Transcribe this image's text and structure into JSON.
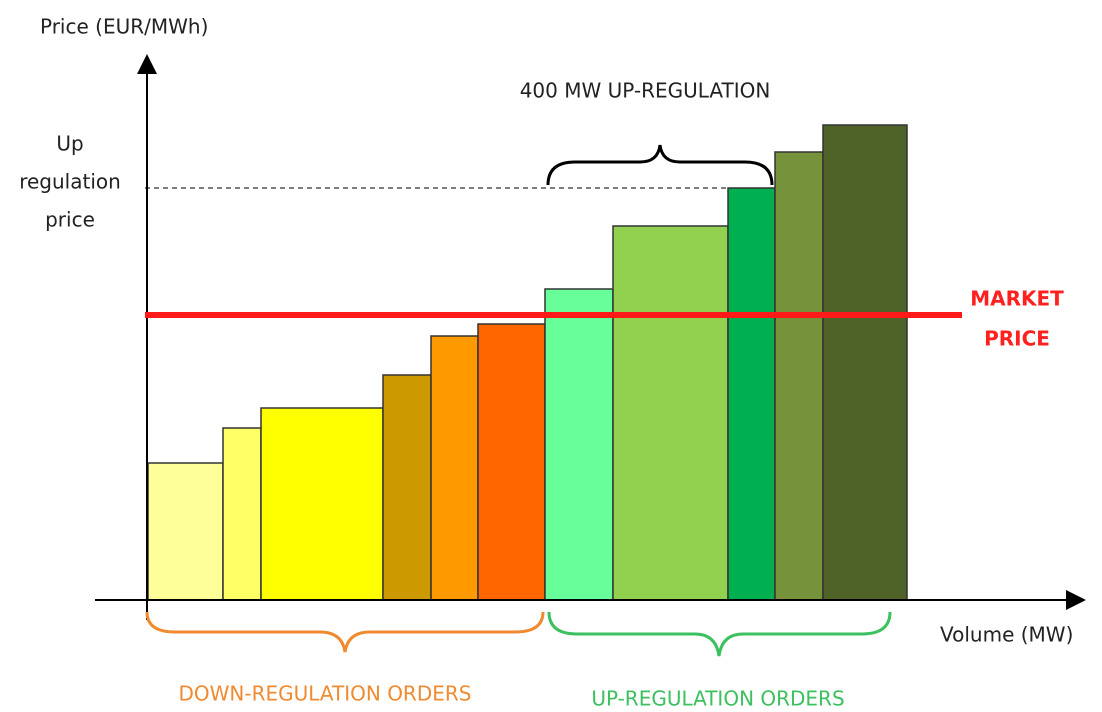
{
  "axes": {
    "y_label": "Price (EUR/MWh)",
    "x_label": "Volume (MW)"
  },
  "up_price_label": [
    "Up",
    "regulation",
    "price"
  ],
  "market_price_label": [
    "MARKET",
    "PRICE"
  ],
  "brace_label": "400 MW UP-REGULATION",
  "down_orders_label": "DOWN-REGULATION ORDERS",
  "up_orders_label": "UP-REGULATION ORDERS"
}
